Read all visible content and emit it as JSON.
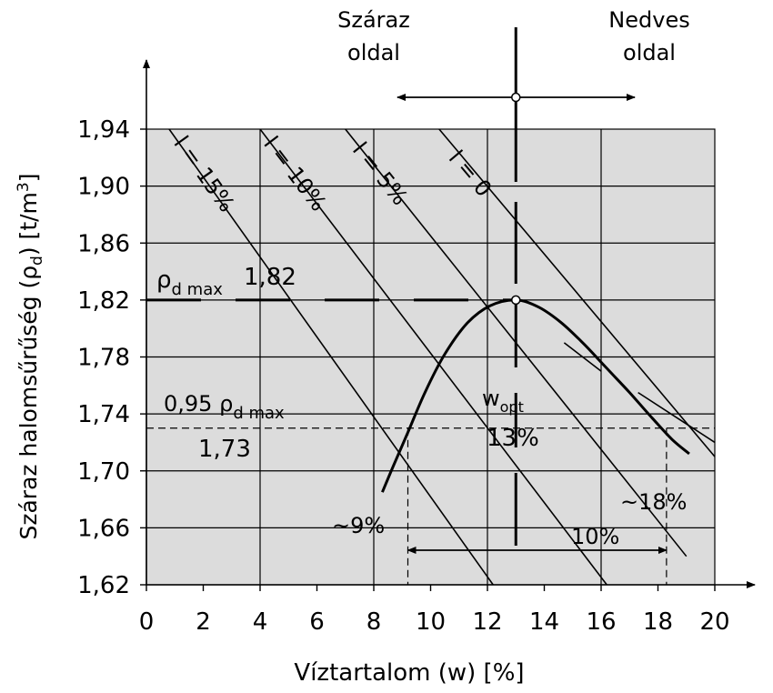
{
  "chart_data": {
    "type": "line",
    "xlabel": "Víztartalom (w) [%]",
    "ylabel": "Száraz halomsűrűség (ρd) [t/m3]",
    "ylabel_parts": {
      "text": "Száraz halomsűrűség (ρ",
      "sub": "d",
      "close": ") [t/m",
      "sup": "3",
      "end": "]"
    },
    "xlim": [
      0,
      20
    ],
    "ylim": [
      1.62,
      1.94
    ],
    "x_ticks": [
      0,
      2,
      4,
      6,
      8,
      10,
      12,
      14,
      16,
      18,
      20
    ],
    "y_ticks": [
      {
        "value": 1.62,
        "label": "1,62"
      },
      {
        "value": 1.66,
        "label": "1,66"
      },
      {
        "value": 1.7,
        "label": "1,70"
      },
      {
        "value": 1.74,
        "label": "1,74"
      },
      {
        "value": 1.78,
        "label": "1,78"
      },
      {
        "value": 1.82,
        "label": "1,82"
      },
      {
        "value": 1.86,
        "label": "1,86"
      },
      {
        "value": 1.9,
        "label": "1,90"
      },
      {
        "value": 1.94,
        "label": "1,94"
      }
    ],
    "grid": true,
    "plot_background": "#dcdcdc",
    "compaction_curve": {
      "x": [
        8.3,
        8.7,
        9.2,
        9.8,
        10.5,
        11.3,
        12.1,
        13.0,
        13.8,
        14.6,
        15.4,
        16.2,
        17.0,
        17.8,
        18.5,
        19.1
      ],
      "y": [
        1.685,
        1.704,
        1.727,
        1.755,
        1.782,
        1.804,
        1.816,
        1.82,
        1.815,
        1.804,
        1.789,
        1.772,
        1.755,
        1.737,
        1.722,
        1.712
      ]
    },
    "air_void_lines": [
      {
        "label": "l = 15%",
        "x": [
          0.8,
          12.2
        ],
        "y": [
          1.94,
          1.62
        ]
      },
      {
        "label": "l = 10%",
        "x": [
          4.0,
          16.2
        ],
        "y": [
          1.94,
          1.62
        ]
      },
      {
        "label": "l = 5%",
        "x": [
          7.0,
          19.0
        ],
        "y": [
          1.94,
          1.64
        ]
      },
      {
        "label": "l = 0",
        "x": [
          10.3,
          20.0
        ],
        "y": [
          1.94,
          1.71
        ]
      }
    ],
    "saturation_segments": [
      {
        "x": [
          14.7,
          16.0
        ],
        "y": [
          1.79,
          1.77
        ]
      },
      {
        "x": [
          17.3,
          20.0
        ],
        "y": [
          1.755,
          1.72
        ]
      }
    ],
    "max_point": {
      "x": 13.0,
      "y": 1.82
    },
    "rho_d_max": {
      "label_main": "ρ",
      "label_sub": "d max",
      "value": "1,82",
      "y": 1.82
    },
    "rho_95": {
      "label_main": "0,95 ρ",
      "label_sub": "d max",
      "value": "1,73",
      "y": 1.73
    },
    "w_opt": {
      "label_main": "w",
      "label_sub": "opt",
      "value": "13%",
      "x": 13.0
    },
    "range_markers": {
      "low": {
        "x": 9.2,
        "label": "~9%"
      },
      "high": {
        "x": 18.3,
        "label": "~18%"
      },
      "width_label": "10%"
    },
    "sides": {
      "dry": [
        "Száraz",
        "oldal"
      ],
      "wet": [
        "Nedves",
        "oldal"
      ]
    }
  }
}
